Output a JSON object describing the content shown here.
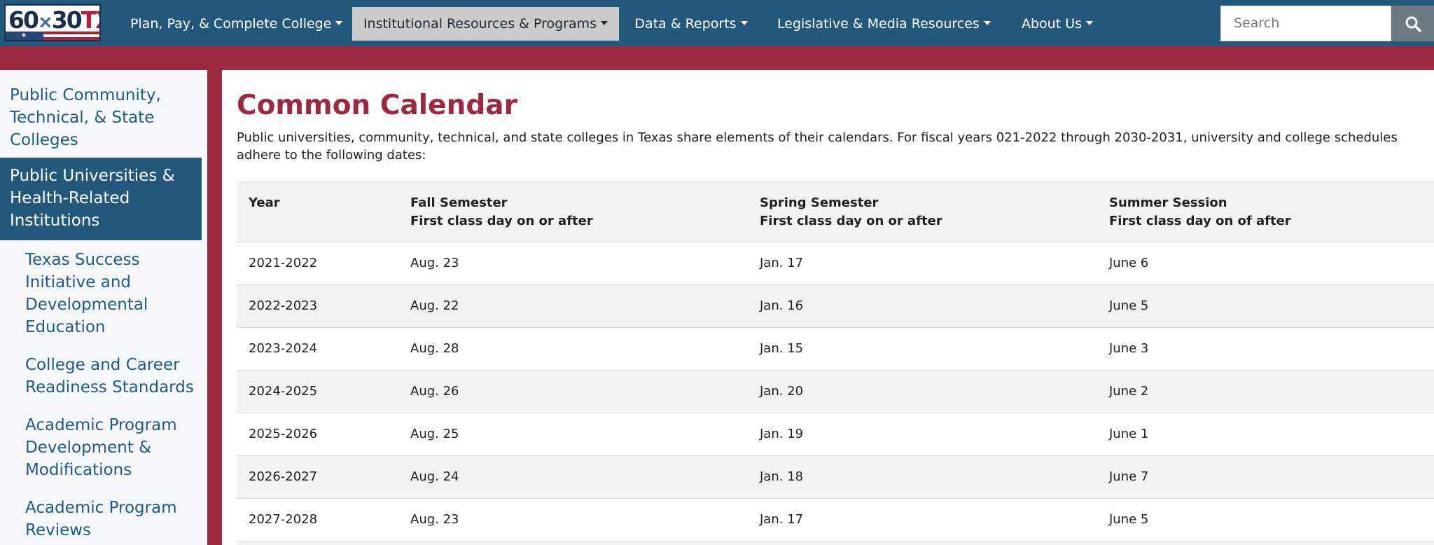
{
  "logo": {
    "part1": "60",
    "part2": "×",
    "part3": "30",
    "part4": "TX"
  },
  "nav": {
    "items": [
      {
        "label": "Plan, Pay, & Complete College"
      },
      {
        "label": "Institutional Resources & Programs"
      },
      {
        "label": "Data & Reports"
      },
      {
        "label": "Legislative & Media Resources"
      },
      {
        "label": "About Us"
      }
    ],
    "active_index": 1,
    "search_placeholder": "Search"
  },
  "sidebar": {
    "items": [
      {
        "label": "Public Community, Technical, & State Colleges"
      },
      {
        "label": "Public Universities & Health-Related Institutions"
      },
      {
        "label": "Texas Success Initiative and Developmental Education"
      },
      {
        "label": "College and Career Readiness Standards"
      },
      {
        "label": "Academic Program Development & Modifications"
      },
      {
        "label": "Academic Program Reviews"
      }
    ],
    "active_index": 1
  },
  "main": {
    "title": "Common Calendar",
    "intro": "Public universities, community, technical, and state colleges in Texas share elements of their calendars. For fiscal years 021-2022 through 2030-2031, university and college schedules adhere to the following dates:",
    "table": {
      "headers": [
        {
          "line1": "Year",
          "line2": ""
        },
        {
          "line1": "Fall Semester",
          "line2": "First class day on or after"
        },
        {
          "line1": "Spring Semester",
          "line2": "First class day on or after"
        },
        {
          "line1": "Summer Session",
          "line2": "First class day on of after"
        }
      ],
      "rows": [
        [
          "2021-2022",
          "Aug. 23",
          "Jan. 17",
          "June 6"
        ],
        [
          "2022-2023",
          "Aug. 22",
          "Jan. 16",
          "June 5"
        ],
        [
          "2023-2024",
          "Aug. 28",
          "Jan. 15",
          "June 3"
        ],
        [
          "2024-2025",
          "Aug. 26",
          "Jan. 20",
          "June 2"
        ],
        [
          "2025-2026",
          "Aug. 25",
          "Jan. 19",
          "June 1"
        ],
        [
          "2026-2027",
          "Aug. 24",
          "Jan. 18",
          "June 7"
        ],
        [
          "2027-2028",
          "Aug. 23",
          "Jan. 17",
          "June 5"
        ]
      ]
    }
  },
  "colors": {
    "nav_bg": "#22587a",
    "brand_red": "#9b2a40",
    "active_nav_bg": "#cbcbcb",
    "sidebar_bg": "#f5f7fa",
    "link": "#1f5c82"
  }
}
